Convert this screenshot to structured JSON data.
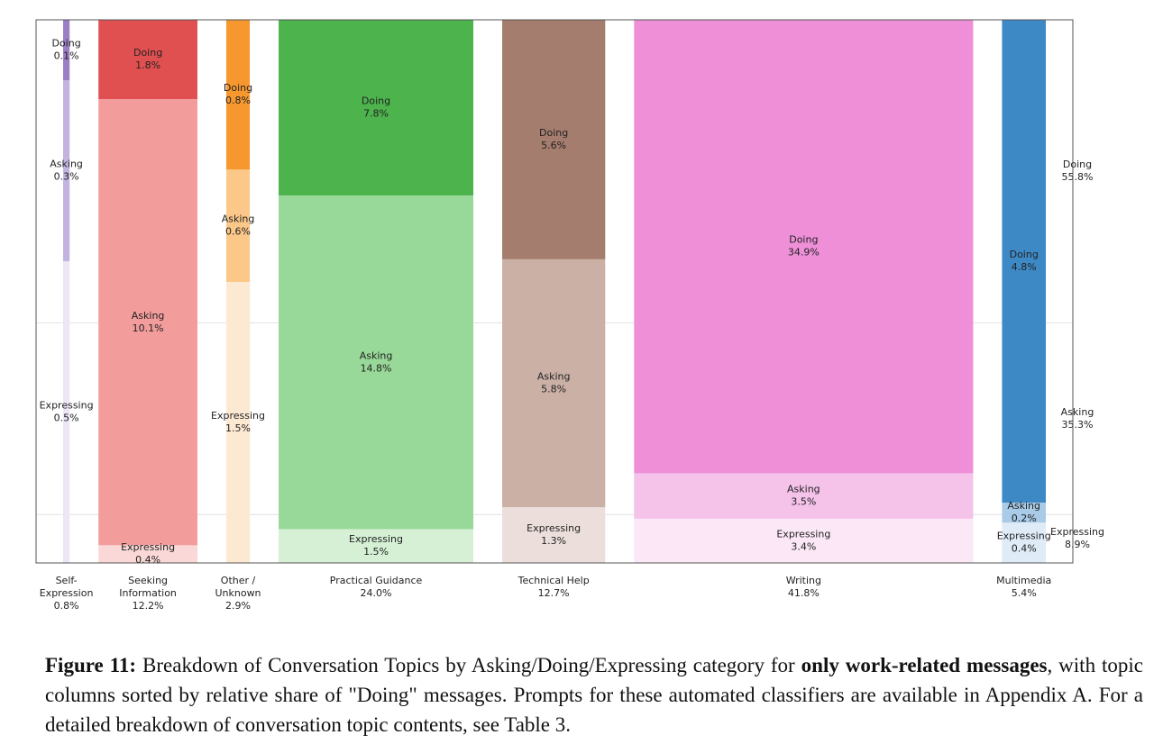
{
  "chart_data": {
    "type": "mosaic",
    "categories": [
      "Self-Expression",
      "Seeking Information",
      "Other / Unknown",
      "Practical Guidance",
      "Technical Help",
      "Writing",
      "Multimedia"
    ],
    "totals": [
      0.8,
      12.2,
      2.9,
      24.0,
      12.7,
      41.8,
      5.4
    ],
    "total_labels": [
      "0.8%",
      "12.2%",
      "2.9%",
      "24.0%",
      "12.7%",
      "41.8%",
      "5.4%"
    ],
    "series": [
      {
        "name": "Doing",
        "values": [
          0.1,
          1.8,
          0.8,
          7.8,
          5.6,
          34.9,
          4.8
        ],
        "value_labels": [
          "0.1%",
          "1.8%",
          "0.8%",
          "7.8%",
          "5.6%",
          "34.9%",
          "4.8%"
        ]
      },
      {
        "name": "Asking",
        "values": [
          0.3,
          10.1,
          0.6,
          14.8,
          5.8,
          3.5,
          0.2
        ],
        "value_labels": [
          "0.3%",
          "10.1%",
          "0.6%",
          "14.8%",
          "5.8%",
          "3.5%",
          "0.2%"
        ]
      },
      {
        "name": "Expressing",
        "values": [
          0.5,
          0.4,
          1.5,
          1.5,
          1.3,
          3.4,
          0.4
        ],
        "value_labels": [
          "0.5%",
          "0.4%",
          "1.5%",
          "1.5%",
          "1.3%",
          "3.4%",
          "0.4%"
        ]
      }
    ],
    "overall": {
      "values": [
        55.8,
        35.3,
        8.9
      ],
      "value_labels": [
        "55.8%",
        "35.3%",
        "8.9%"
      ]
    },
    "colors": [
      [
        "#9b7fc4",
        "#c2b3df",
        "#ece6f5"
      ],
      [
        "#e05050",
        "#f29c9c",
        "#fbd8d8"
      ],
      [
        "#f7982f",
        "#fbc889",
        "#fde9d2"
      ],
      [
        "#4db34d",
        "#98d898",
        "#d5f0d5"
      ],
      [
        "#a57d6e",
        "#cbb0a6",
        "#ecdfdb"
      ],
      [
        "#ee8fd8",
        "#f5c2ea",
        "#fbe7f6"
      ],
      [
        "#3d89c6",
        "#a9cbe8",
        "#dfecf7"
      ]
    ]
  },
  "caption": {
    "runs": [
      {
        "text": "Figure 11:",
        "bold": true
      },
      {
        "text": " Breakdown of Conversation Topics by Asking/Doing/Expressing category for ",
        "bold": false
      },
      {
        "text": "only work-related messages",
        "bold": true
      },
      {
        "text": ", with topic columns sorted by relative share of \"Doing\" messages. Prompts for these automated classifiers are available in Appendix A. For a detailed breakdown of conversation topic contents, see Table 3.",
        "bold": false
      }
    ]
  }
}
